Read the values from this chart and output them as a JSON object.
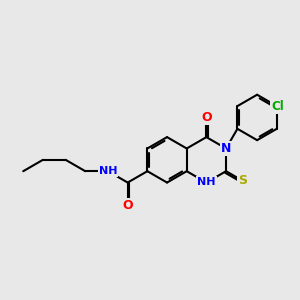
{
  "background_color": "#e8e8e8",
  "bond_color": "#000000",
  "atom_colors": {
    "O": "#ff0000",
    "N": "#0000ff",
    "S": "#aaaa00",
    "Cl": "#00aa00",
    "C": "#000000",
    "H": "#555555"
  },
  "figsize": [
    3.0,
    3.0
  ],
  "dpi": 100
}
